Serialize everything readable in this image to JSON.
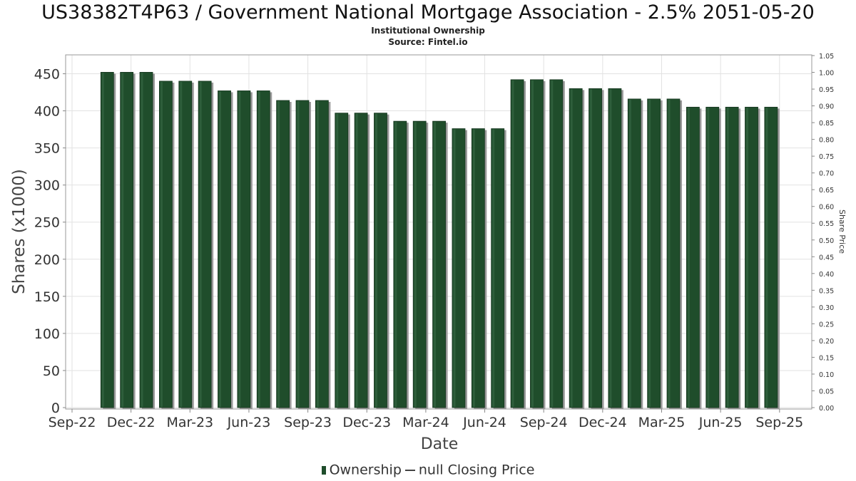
{
  "chart_data": {
    "type": "bar",
    "title": "US38382T4P63 / Government National Mortgage Association - 2.5% 2051-05-20",
    "subtitle": "Institutional Ownership",
    "source": "Source: Fintel.io",
    "xlabel": "Date",
    "ylabel": "Shares (x1000)",
    "y2label": "Share Price",
    "ylim": [
      0,
      460
    ],
    "y2lim": [
      0,
      1.05
    ],
    "yticks": [
      0,
      50,
      100,
      150,
      200,
      250,
      300,
      350,
      400,
      450
    ],
    "y2ticks": [
      "0.00",
      "0.05",
      "0.10",
      "0.15",
      "0.20",
      "0.25",
      "0.30",
      "0.35",
      "0.40",
      "0.45",
      "0.50",
      "0.55",
      "0.60",
      "0.65",
      "0.70",
      "0.75",
      "0.80",
      "0.85",
      "0.90",
      "0.95",
      "1.00",
      "1.05"
    ],
    "xticks": [
      "Sep-22",
      "Dec-22",
      "Mar-23",
      "Jun-23",
      "Sep-23",
      "Dec-23",
      "Mar-24",
      "Jun-24",
      "Sep-24",
      "Dec-24",
      "Mar-25",
      "Jun-25",
      "Sep-25"
    ],
    "grid": true,
    "legend_position": "bottom",
    "series": [
      {
        "name": "Ownership",
        "color": "#1f4d2b",
        "values": [
          452,
          452,
          452,
          440,
          440,
          440,
          427,
          427,
          427,
          414,
          414,
          414,
          397,
          397,
          397,
          386,
          386,
          386,
          376,
          376,
          376,
          442,
          442,
          442,
          430,
          430,
          430,
          416,
          416,
          416,
          405,
          405,
          405,
          405,
          405
        ]
      }
    ],
    "legend": {
      "ownership_label": "Ownership",
      "price_label": "null Closing Price"
    }
  }
}
